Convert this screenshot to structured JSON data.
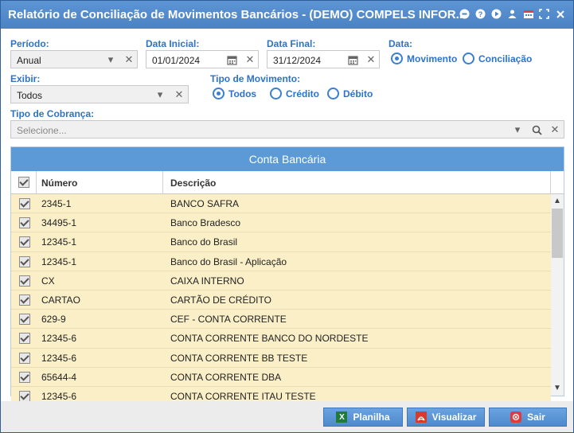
{
  "window": {
    "title": "Relatório de Conciliação de Movimentos Bancários - (DEMO) COMPELS INFOR..."
  },
  "filters": {
    "periodo_label": "Período:",
    "periodo_value": "Anual",
    "data_inicial_label": "Data Inicial:",
    "data_inicial_value": "01/01/2024",
    "data_final_label": "Data Final:",
    "data_final_value": "31/12/2024",
    "data_label": "Data:",
    "data_opt_movimento": "Movimento",
    "data_opt_conciliacao": "Conciliação",
    "data_selected": "Movimento",
    "exibir_label": "Exibir:",
    "exibir_value": "Todos",
    "tipo_mov_label": "Tipo de Movimento:",
    "tipo_mov_todos": "Todos",
    "tipo_mov_credito": "Crédito",
    "tipo_mov_debito": "Débito",
    "tipo_mov_selected": "Todos",
    "tipo_cobranca_label": "Tipo de Cobrança:",
    "tipo_cobranca_placeholder": "Selecione..."
  },
  "grid": {
    "title": "Conta Bancária",
    "columns": [
      "Número",
      "Descrição"
    ],
    "rows": [
      {
        "numero": "2345-1",
        "descricao": "BANCO SAFRA",
        "checked": true
      },
      {
        "numero": "34495-1",
        "descricao": "Banco Bradesco",
        "checked": true
      },
      {
        "numero": "12345-1",
        "descricao": "Banco do Brasil",
        "checked": true
      },
      {
        "numero": "12345-1",
        "descricao": "Banco do Brasil - Aplicação",
        "checked": true
      },
      {
        "numero": "CX",
        "descricao": "CAIXA INTERNO",
        "checked": true
      },
      {
        "numero": "CARTAO",
        "descricao": "CARTÃO DE CRÉDITO",
        "checked": true
      },
      {
        "numero": "629-9",
        "descricao": "CEF - CONTA CORRENTE",
        "checked": true
      },
      {
        "numero": "12345-6",
        "descricao": "CONTA CORRENTE BANCO DO NORDESTE",
        "checked": true
      },
      {
        "numero": "12345-6",
        "descricao": "CONTA CORRENTE BB TESTE",
        "checked": true
      },
      {
        "numero": "65644-4",
        "descricao": "CONTA CORRENTE DBA",
        "checked": true
      },
      {
        "numero": "12345-6",
        "descricao": "CONTA CORRENTE ITAU TESTE",
        "checked": true
      }
    ]
  },
  "buttons": {
    "planilha": "Planilha",
    "visualizar": "Visualizar",
    "sair": "Sair"
  },
  "colors": {
    "accent": "#2d73c6",
    "titlebar": "#4a82c4",
    "row_bg": "#fbefc8"
  }
}
